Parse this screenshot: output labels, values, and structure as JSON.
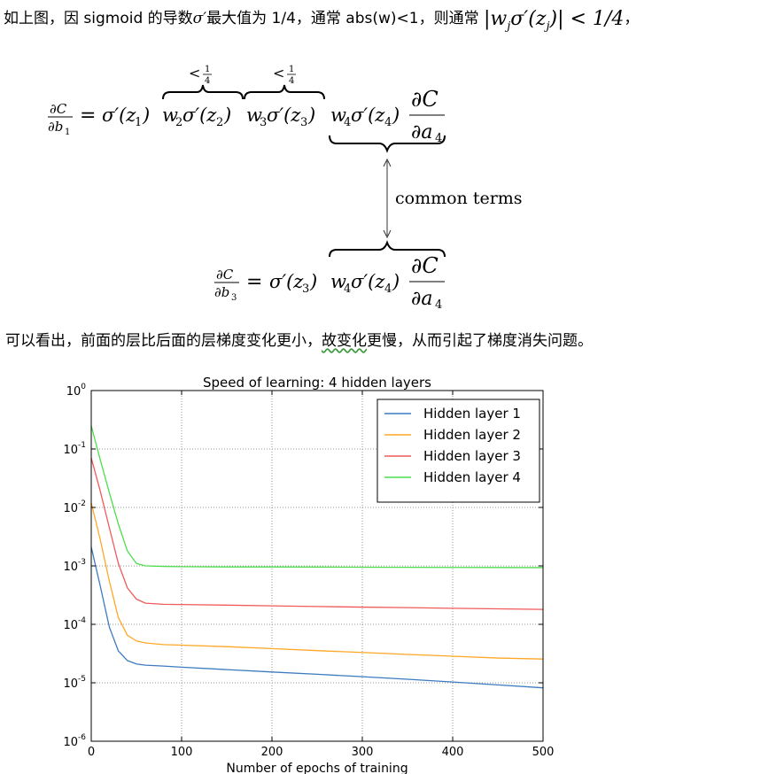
{
  "text": {
    "line1_prefix": "如上图，因 sigmoid 的导数",
    "line1_sigma": "σ′",
    "line1_mid": "最大值为 1/4，通常 abs(w)<1，则通常",
    "line1_math": "|w",
    "line1_math_sub": "j",
    "line1_math_rest": "σ′(z",
    "line1_math_sub2": "j",
    "line1_math_end": ")| < 1/4",
    "line1_suffix": "，",
    "line2_prefix": "可以看出，前面的层比后面的层梯度变化更小，",
    "line2_underlined": "故变化",
    "line2_suffix": "更慢，从而引起了梯度消失问题。"
  },
  "equation": {
    "brace_label_1": "<",
    "brace_label_2": "<",
    "frac_quarter_num": "1",
    "frac_quarter_den": "4",
    "common_terms": "common terms"
  },
  "chart_data": {
    "type": "line",
    "title": "Speed of learning: 4 hidden layers",
    "xlabel": "Number of epochs of training",
    "ylabel": "",
    "xlim": [
      0,
      500
    ],
    "ylim": [
      1e-06,
      1
    ],
    "yscale": "log",
    "xticks": [
      0,
      100,
      200,
      300,
      400,
      500
    ],
    "yticks": [
      {
        "value": 1,
        "base": "10",
        "exp": "0"
      },
      {
        "value": 0.1,
        "base": "10",
        "exp": "-1"
      },
      {
        "value": 0.01,
        "base": "10",
        "exp": "-2"
      },
      {
        "value": 0.001,
        "base": "10",
        "exp": "-3"
      },
      {
        "value": 0.0001,
        "base": "10",
        "exp": "-4"
      },
      {
        "value": 1e-05,
        "base": "10",
        "exp": "-5"
      },
      {
        "value": 1e-06,
        "base": "10",
        "exp": "-6"
      }
    ],
    "grid": true,
    "legend_position": "top-right",
    "x": [
      0,
      10,
      20,
      30,
      40,
      50,
      60,
      80,
      100,
      150,
      200,
      250,
      300,
      350,
      400,
      450,
      500
    ],
    "series": [
      {
        "name": "Hidden layer 1",
        "color": "#3b7bbf",
        "values": [
          0.0021,
          0.00045,
          9e-05,
          3.5e-05,
          2.4e-05,
          2.1e-05,
          2e-05,
          1.93e-05,
          1.85e-05,
          1.68e-05,
          1.53e-05,
          1.4e-05,
          1.27e-05,
          1.15e-05,
          1.03e-05,
          9.2e-06,
          8.2e-06
        ]
      },
      {
        "name": "Hidden layer 2",
        "color": "#ffa726",
        "values": [
          0.012,
          0.0028,
          0.00055,
          0.00013,
          6.5e-05,
          5.2e-05,
          4.8e-05,
          4.5e-05,
          4.4e-05,
          4.15e-05,
          3.85e-05,
          3.55e-05,
          3.3e-05,
          3.05e-05,
          2.85e-05,
          2.65e-05,
          2.55e-05
        ]
      },
      {
        "name": "Hidden layer 3",
        "color": "#f05a5a",
        "values": [
          0.07,
          0.019,
          0.0045,
          0.0011,
          0.00042,
          0.00027,
          0.00023,
          0.00022,
          0.000218,
          0.000213,
          0.000207,
          0.000202,
          0.000197,
          0.000193,
          0.000188,
          0.000184,
          0.00018
        ]
      },
      {
        "name": "Hidden layer 4",
        "color": "#4ddd4d",
        "values": [
          0.25,
          0.065,
          0.018,
          0.0052,
          0.0018,
          0.0011,
          0.001,
          0.00098,
          0.00097,
          0.00096,
          0.00096,
          0.000955,
          0.00095,
          0.000945,
          0.00094,
          0.000938,
          0.000935
        ]
      }
    ]
  }
}
